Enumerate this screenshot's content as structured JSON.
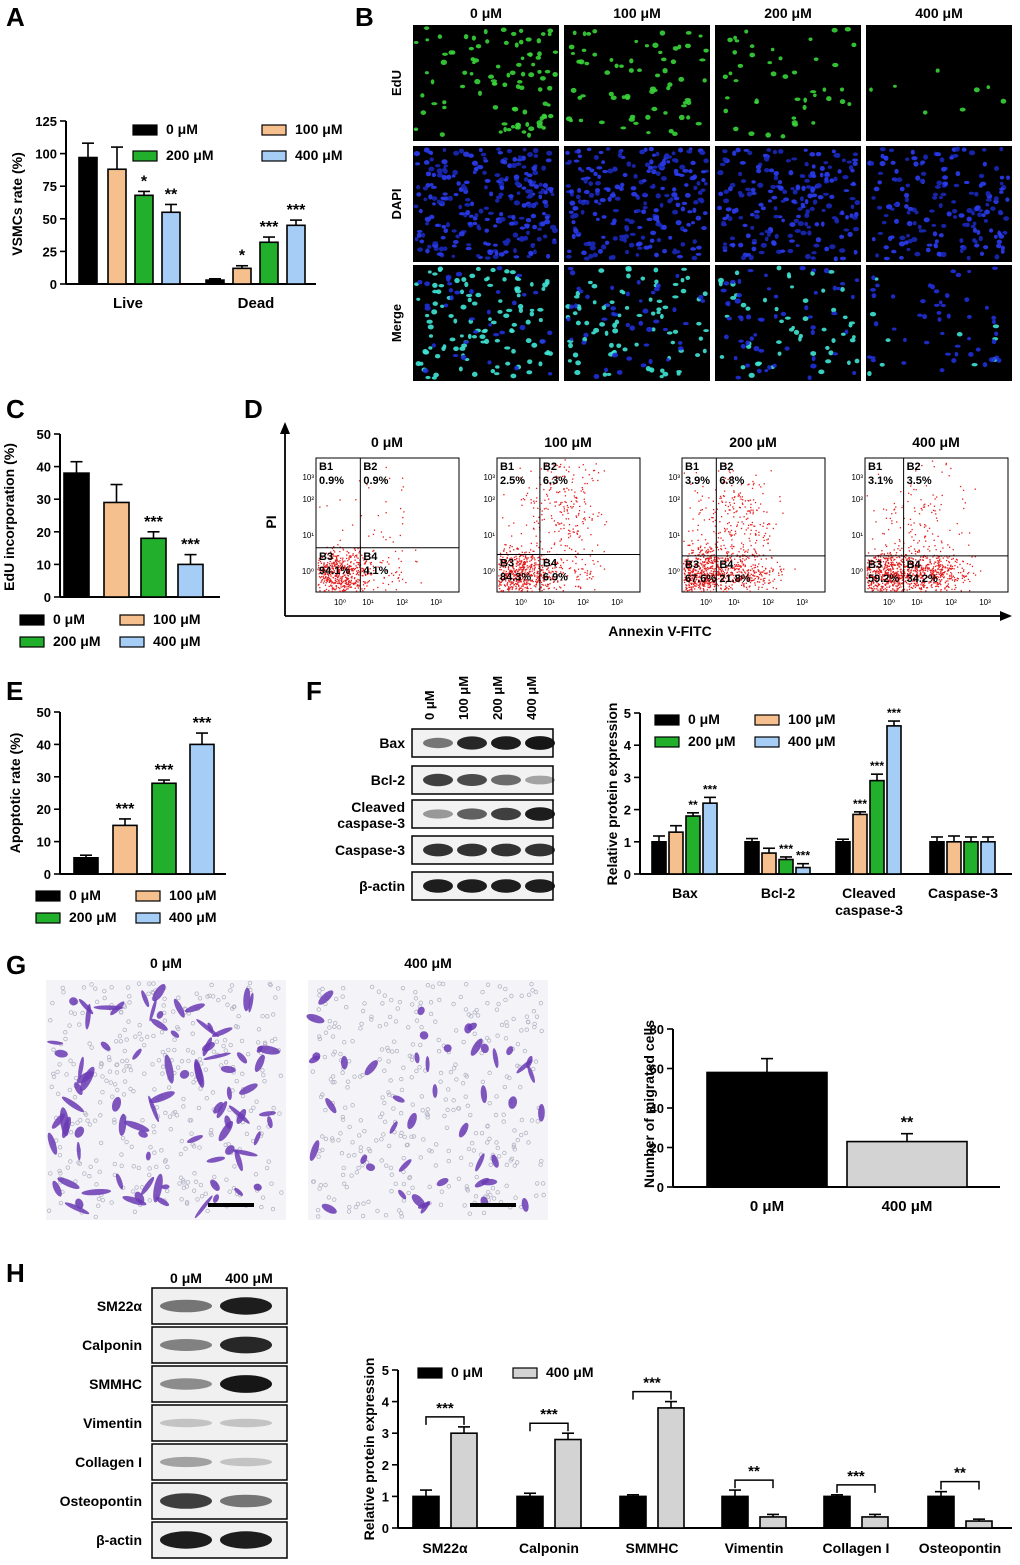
{
  "colors": {
    "c0": "#000000",
    "c100": "#f6c08e",
    "c200": "#22b02c",
    "c400": "#a6cdf6",
    "c400_gray": "#d3d3d3",
    "edu_green": "#38d43a",
    "dapi_blue": "#1f36e6",
    "merge_cyan": "#3ee6d6",
    "flow_red": "#e51d1d",
    "crystal_violet": "#6a3ab4"
  },
  "panel_labels": [
    "A",
    "B",
    "C",
    "D",
    "E",
    "F",
    "G",
    "H"
  ],
  "concentrations": [
    "0 μM",
    "100 μM",
    "200 μM",
    "400 μM"
  ],
  "lanes_two": [
    "0 μM",
    "400 μM"
  ],
  "chart_data": [
    {
      "panel": "A",
      "type": "bar",
      "categories": [
        "Live",
        "Dead"
      ],
      "ylabel": "VSMCs rate (%)",
      "xlabel": "",
      "ylim": [
        0,
        125
      ],
      "yticks": [
        "0",
        "25",
        "50",
        "75",
        "100",
        "125"
      ],
      "legend": [
        "0 μM",
        "100 μM",
        "200 μM",
        "400 μM"
      ],
      "series": [
        {
          "name": "0 μM",
          "values": [
            97,
            3
          ],
          "errors": [
            11,
            1
          ],
          "sig": [
            "",
            ""
          ]
        },
        {
          "name": "100 μM",
          "values": [
            88,
            12
          ],
          "errors": [
            17,
            2
          ],
          "sig": [
            "",
            "*"
          ]
        },
        {
          "name": "200 μM",
          "values": [
            68,
            32
          ],
          "errors": [
            3,
            4
          ],
          "sig": [
            "*",
            "***"
          ]
        },
        {
          "name": "400 μM",
          "values": [
            55,
            45
          ],
          "errors": [
            6,
            4
          ],
          "sig": [
            "**",
            "***"
          ]
        }
      ]
    },
    {
      "panel": "C",
      "type": "bar",
      "categories": [
        "0 μM",
        "100 μM",
        "200 μM",
        "400 μM"
      ],
      "ylabel": "EdU  incorporation (%)",
      "xlabel": "",
      "ylim": [
        0,
        50
      ],
      "yticks": [
        "0",
        "10",
        "20",
        "30",
        "40",
        "50"
      ],
      "values": [
        38,
        29,
        18,
        10
      ],
      "errors": [
        3.5,
        5.5,
        2,
        3
      ],
      "sig": [
        "",
        "",
        "***",
        "***"
      ],
      "legend": [
        "0 μM",
        "100 μM",
        "200 μM",
        "400 μM"
      ]
    },
    {
      "panel": "E",
      "type": "bar",
      "categories": [
        "0 μM",
        "100 μM",
        "200 μM",
        "400 μM"
      ],
      "ylabel": "Apoptotic rate (%)",
      "xlabel": "",
      "ylim": [
        0,
        50
      ],
      "yticks": [
        "0",
        "10",
        "20",
        "30",
        "40",
        "50"
      ],
      "values": [
        5,
        15,
        28,
        40
      ],
      "errors": [
        0.8,
        2,
        1,
        3.5
      ],
      "sig": [
        "",
        "***",
        "***",
        "***"
      ],
      "legend": [
        "0 μM",
        "100 μM",
        "200 μM",
        "400 μM"
      ]
    },
    {
      "panel": "F",
      "type": "bar",
      "categories": [
        "Bax",
        "Bcl-2",
        "Cleaved caspase-3",
        "Caspase-3"
      ],
      "category_lines": [
        [
          "Bax"
        ],
        [
          "Bcl-2"
        ],
        [
          "Cleaved",
          "caspase-3"
        ],
        [
          "Caspase-3"
        ]
      ],
      "ylabel": "Relative protein expression",
      "xlabel": "",
      "ylim": [
        0,
        5
      ],
      "yticks": [
        "0",
        "1",
        "2",
        "3",
        "4",
        "5"
      ],
      "legend": [
        "0 μM",
        "100 μM",
        "200 μM",
        "400 μM"
      ],
      "series": [
        {
          "name": "0 μM",
          "values": [
            1,
            1,
            1,
            1
          ],
          "errors": [
            0.18,
            0.1,
            0.08,
            0.15
          ],
          "sig": [
            "",
            "",
            "",
            ""
          ]
        },
        {
          "name": "100 μM",
          "values": [
            1.3,
            0.65,
            1.85,
            1
          ],
          "errors": [
            0.2,
            0.15,
            0.08,
            0.18
          ],
          "sig": [
            "",
            "",
            "***",
            ""
          ]
        },
        {
          "name": "200 μM",
          "values": [
            1.8,
            0.45,
            2.9,
            1
          ],
          "errors": [
            0.1,
            0.08,
            0.2,
            0.15
          ],
          "sig": [
            "**",
            "***",
            "***",
            ""
          ]
        },
        {
          "name": "400 μM",
          "values": [
            2.2,
            0.2,
            4.6,
            1
          ],
          "errors": [
            0.18,
            0.12,
            0.15,
            0.15
          ],
          "sig": [
            "***",
            "***",
            "***",
            ""
          ]
        }
      ]
    },
    {
      "panel": "D",
      "type": "scatter",
      "xlabel": "Annexin V-FITC",
      "ylabel": "PI",
      "quadrant_labels": [
        "B1",
        "B2",
        "B3",
        "B4"
      ],
      "xticks": [
        "10⁰",
        "10¹",
        "10²",
        "10³"
      ],
      "yticks": [
        "10⁰",
        "10¹",
        "10²",
        "10³"
      ],
      "plots": [
        {
          "title": "0 μM",
          "B1": "0.9%",
          "B2": "0.9%",
          "B3": "94.1%",
          "B4": "4.1%"
        },
        {
          "title": "100 μM",
          "B1": "2.5%",
          "B2": "6.3%",
          "B3": "84.3%",
          "B4": "6.9%"
        },
        {
          "title": "200 μM",
          "B1": "3.9%",
          "B2": "6.8%",
          "B3": "67.6%",
          "B4": "21.8%"
        },
        {
          "title": "400 μM",
          "B1": "3.1%",
          "B2": "3.5%",
          "B3": "59.2%",
          "B4": "34.2%"
        }
      ]
    },
    {
      "panel": "G",
      "type": "bar",
      "categories": [
        "0 μM",
        "400 μM"
      ],
      "ylabel": "Number of migrated cells",
      "xlabel": "",
      "ylim": [
        0,
        80
      ],
      "yticks": [
        "0",
        "20",
        "40",
        "60",
        "80"
      ],
      "values": [
        58,
        23
      ],
      "errors": [
        7,
        4
      ],
      "sig": [
        "",
        "**"
      ]
    },
    {
      "panel": "H",
      "type": "bar",
      "categories": [
        "SM22α",
        "Calponin",
        "SMMHC",
        "Vimentin",
        "Collagen I",
        "Osteopontin"
      ],
      "ylabel": "Relative protein expression",
      "xlabel": "",
      "ylim": [
        0,
        5
      ],
      "yticks": [
        "0",
        "1",
        "2",
        "3",
        "4",
        "5"
      ],
      "legend": [
        "0 μM",
        "400 μM"
      ],
      "series": [
        {
          "name": "0 μM",
          "values": [
            1,
            1,
            1,
            1,
            1,
            1
          ],
          "errors": [
            0.2,
            0.1,
            0.05,
            0.2,
            0.05,
            0.15
          ]
        },
        {
          "name": "400 μM",
          "values": [
            3,
            2.8,
            3.8,
            0.35,
            0.35,
            0.22
          ],
          "errors": [
            0.2,
            0.2,
            0.2,
            0.08,
            0.08,
            0.06
          ]
        }
      ],
      "sig": [
        "***",
        "***",
        "***",
        "**",
        "***",
        "**"
      ]
    }
  ],
  "panelB": {
    "columns": [
      "0 μM",
      "100 μM",
      "200 μM",
      "400 μM"
    ],
    "rows": [
      "EdU",
      "DAPI",
      "Merge"
    ]
  },
  "panelF_blot": {
    "lanes": [
      "0 μM",
      "100 μM",
      "200 μM",
      "400 μM"
    ],
    "proteins": [
      {
        "label": "Bax",
        "lines": [
          "Bax"
        ]
      },
      {
        "label": "Bcl-2",
        "lines": [
          "Bcl-2"
        ]
      },
      {
        "label": "Cleaved caspase-3",
        "lines": [
          "Cleaved",
          "caspase-3"
        ]
      },
      {
        "label": "Caspase-3",
        "lines": [
          "Caspase-3"
        ]
      },
      {
        "label": "β-actin",
        "lines": [
          "β-actin"
        ]
      }
    ]
  },
  "panelG_images": {
    "titles": [
      "0 μM",
      "400 μM"
    ]
  },
  "panelH_blot": {
    "lanes": [
      "0 μM",
      "400 μM"
    ],
    "proteins": [
      "SM22α",
      "Calponin",
      "SMMHC",
      "Vimentin",
      "Collagen I",
      "Osteopontin",
      "β-actin"
    ]
  }
}
